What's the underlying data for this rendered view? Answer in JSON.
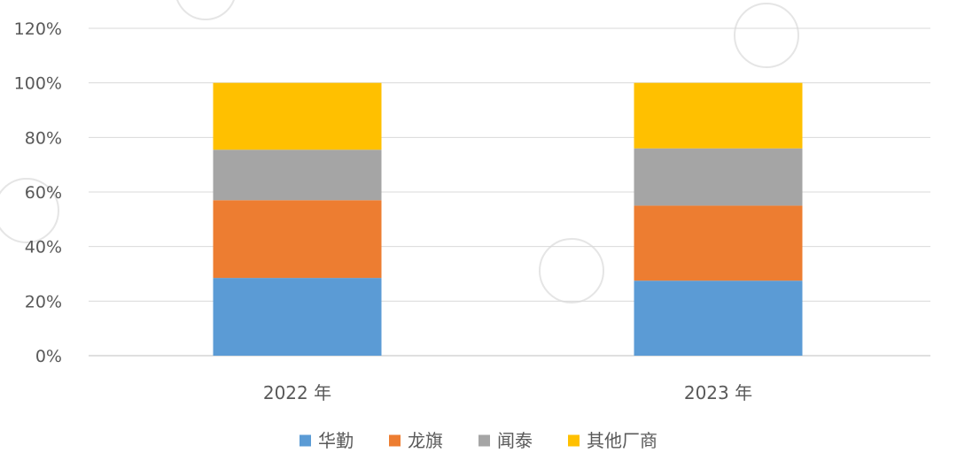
{
  "chart_data": {
    "type": "bar",
    "stacked": true,
    "categories": [
      "2022 年",
      "2023 年"
    ],
    "series": [
      {
        "name": "华勤",
        "color": "#5B9BD5",
        "values": [
          28.5,
          27.5
        ]
      },
      {
        "name": "龙旗",
        "color": "#ED7D31",
        "values": [
          28.5,
          27.5
        ]
      },
      {
        "name": "闻泰",
        "color": "#A5A5A5",
        "values": [
          18.5,
          21.0
        ]
      },
      {
        "name": "其他厂商",
        "color": "#FFC000",
        "values": [
          24.5,
          24.0
        ]
      }
    ],
    "yticks": [
      "0%",
      "20%",
      "40%",
      "60%",
      "80%",
      "100%",
      "120%"
    ],
    "ylim": [
      0,
      120
    ],
    "grid": true,
    "legend_position": "bottom",
    "title": "",
    "xlabel": "",
    "ylabel": ""
  }
}
